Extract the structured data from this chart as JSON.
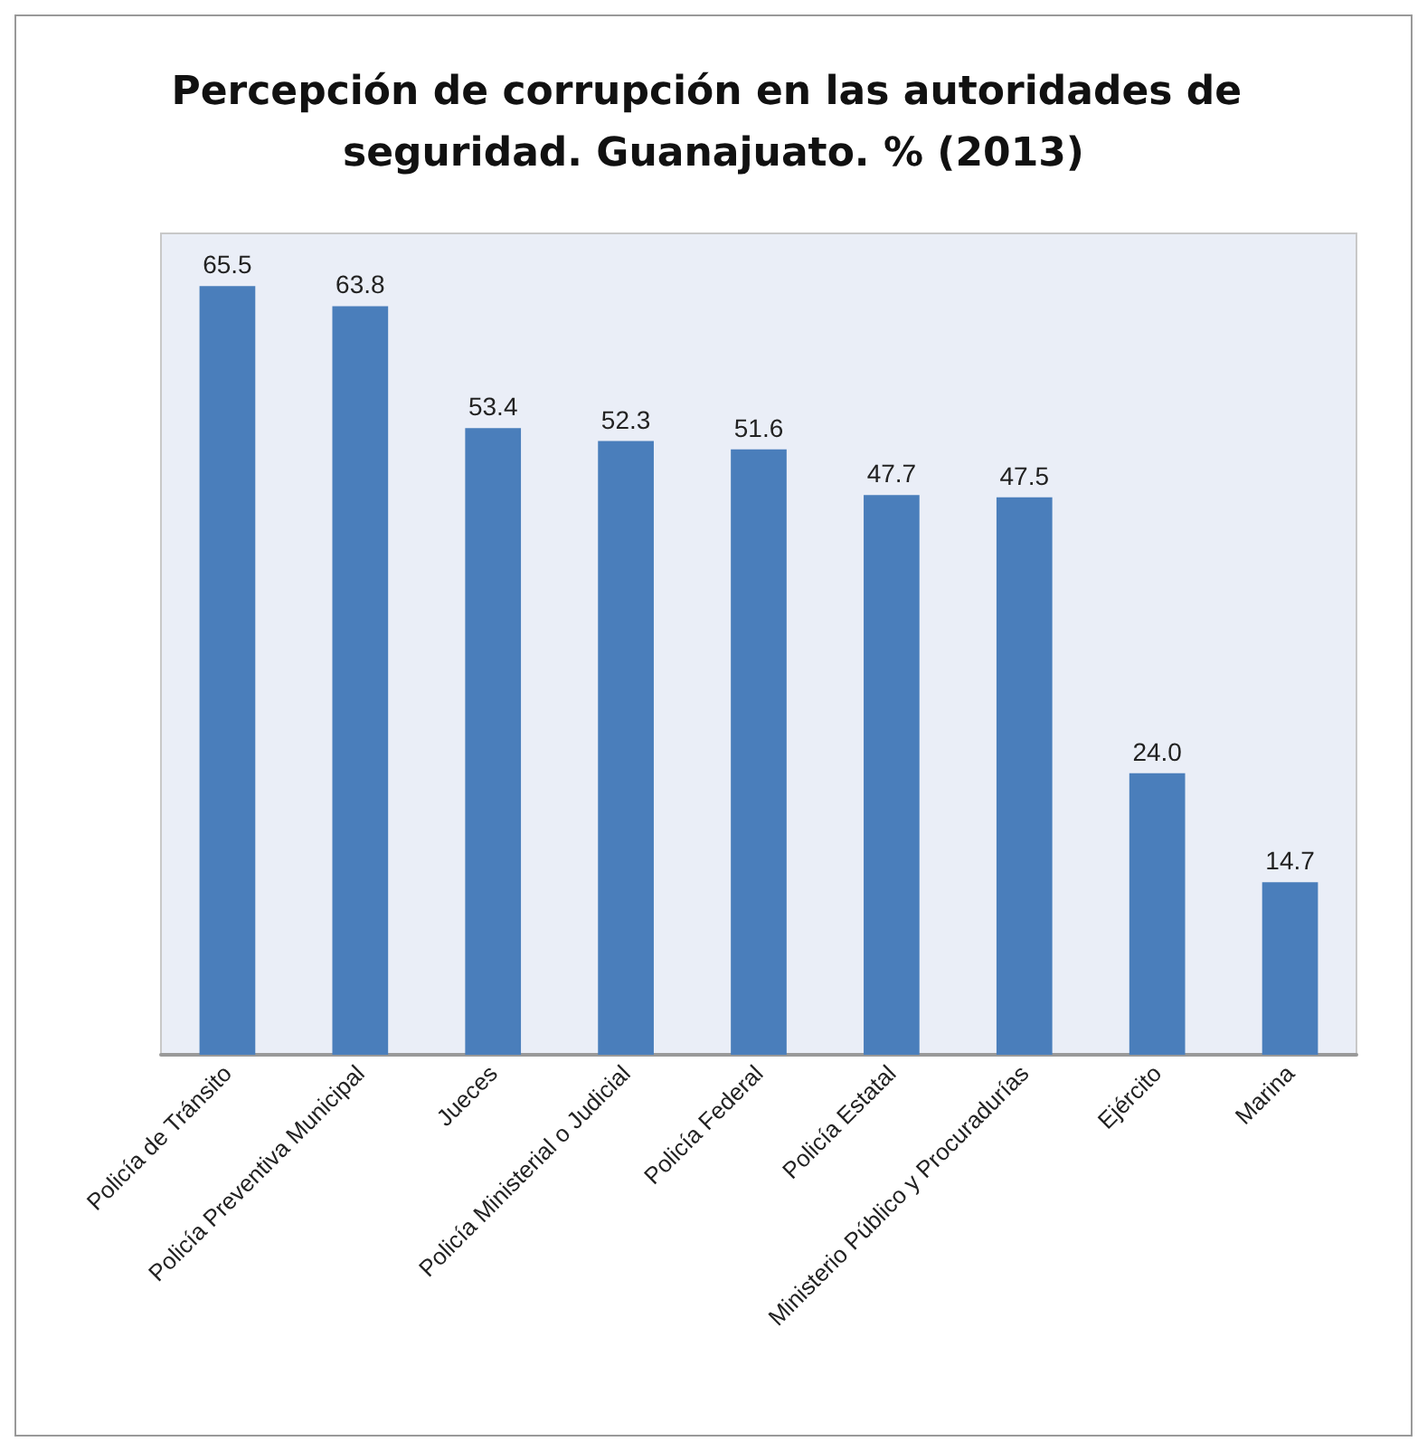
{
  "chart_data": {
    "type": "bar",
    "title": "Percepción de corrupción en las autoridades de seguridad. Guanajuato. % (2013)",
    "categories": [
      "Policía de Tránsito",
      "Policía Preventiva Municipal",
      "Jueces",
      "Policía Ministerial o Judicial",
      "Policía Federal",
      "Policía Estatal",
      "Ministerio Público y Procuradurías",
      "Ejército",
      "Marina"
    ],
    "values": [
      65.5,
      63.8,
      53.4,
      52.3,
      51.6,
      47.7,
      47.5,
      24.0,
      14.7
    ],
    "value_labels": [
      "65.5",
      "63.8",
      "53.4",
      "52.3",
      "51.6",
      "47.7",
      "47.5",
      "24.0",
      "14.7"
    ],
    "color": "#4a7ebb"
  }
}
